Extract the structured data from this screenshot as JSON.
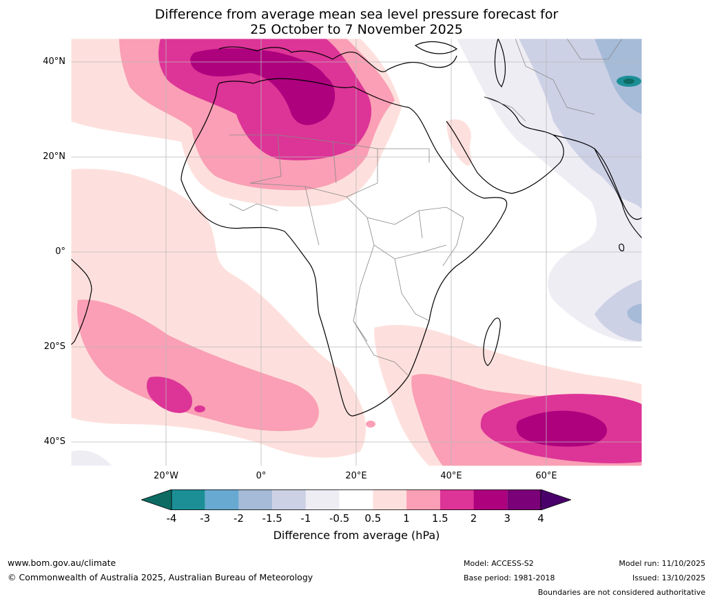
{
  "title_line1": "Difference from average mean sea level pressure forecast for",
  "title_line2": "25 October to 7 November 2025",
  "lat_labels": [
    "40°N",
    "20°N",
    "0°",
    "20°S",
    "40°S"
  ],
  "lon_labels": [
    "20°W",
    "0°",
    "20°E",
    "40°E",
    "60°E"
  ],
  "colorbar": {
    "ticks": [
      "-4",
      "-3",
      "-2",
      "-1.5",
      "-1",
      "-0.5",
      "0.5",
      "1",
      "1.5",
      "2",
      "3",
      "4"
    ],
    "colors": [
      "#1c8f96",
      "#68a9d1",
      "#a5bbd8",
      "#cdd1e5",
      "#efedf4",
      "#ffffff",
      "#fde0dd",
      "#fa9fb5",
      "#dd3497",
      "#ae017e",
      "#7a0177"
    ],
    "under_color": "#0d6b64",
    "over_color": "#49006a",
    "title": "Difference from average (hPa)"
  },
  "footer": {
    "url": "www.bom.gov.au/climate",
    "copyright": "© Commonwealth of Australia 2025, Australian Bureau of Meteorology",
    "model": "Model: ACCESS-S2",
    "base_period": "Base period: 1981-2018",
    "model_run": "Model run: 11/10/2025",
    "issued": "Issued: 13/10/2025",
    "boundaries": "Boundaries are not considered authoritative"
  }
}
